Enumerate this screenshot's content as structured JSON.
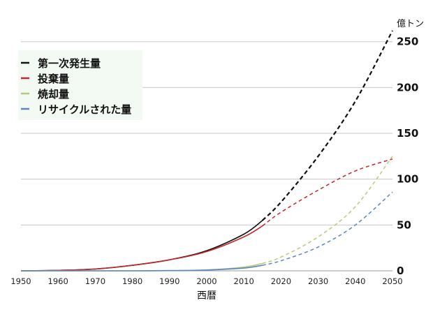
{
  "chart_data": {
    "type": "line",
    "title": "",
    "xlabel": "西暦",
    "ylabel": "億トン",
    "xlim": [
      1950,
      2050
    ],
    "ylim": [
      0,
      265
    ],
    "grid": true,
    "legend_position": "top-left",
    "x_ticks": [
      1950,
      1960,
      1970,
      1980,
      1990,
      2000,
      2010,
      2020,
      2030,
      2040,
      2050
    ],
    "y_ticks": [
      0,
      50,
      100,
      150,
      200,
      250
    ],
    "projection_start": 2015,
    "series": [
      {
        "name": "第一次発生量",
        "color": "#111111",
        "x": [
          1950,
          1960,
          1970,
          1980,
          1990,
          2000,
          2010,
          2015,
          2020,
          2030,
          2040,
          2050
        ],
        "y": [
          0,
          0.5,
          2,
          6,
          12,
          22,
          40,
          55,
          75,
          125,
          185,
          262
        ]
      },
      {
        "name": "投棄量",
        "color": "#c0282a",
        "x": [
          1950,
          1960,
          1970,
          1980,
          1990,
          2000,
          2010,
          2015,
          2020,
          2030,
          2040,
          2050
        ],
        "y": [
          0,
          0.5,
          2,
          6,
          12,
          21,
          37,
          49,
          64,
          88,
          109,
          122
        ]
      },
      {
        "name": "焼却量",
        "color": "#b8c97a",
        "x": [
          1950,
          1960,
          1970,
          1980,
          1990,
          2000,
          2010,
          2015,
          2020,
          2030,
          2040,
          2050
        ],
        "y": [
          0,
          0,
          0,
          0,
          0.3,
          1,
          4,
          8,
          15,
          37,
          70,
          125
        ]
      },
      {
        "name": "リサイクルされた量",
        "color": "#5b87c0",
        "x": [
          1950,
          1960,
          1970,
          1980,
          1990,
          2000,
          2010,
          2015,
          2020,
          2030,
          2040,
          2050
        ],
        "y": [
          0,
          0,
          0,
          0,
          0.2,
          0.8,
          3,
          6,
          11,
          26,
          50,
          86
        ]
      }
    ]
  }
}
